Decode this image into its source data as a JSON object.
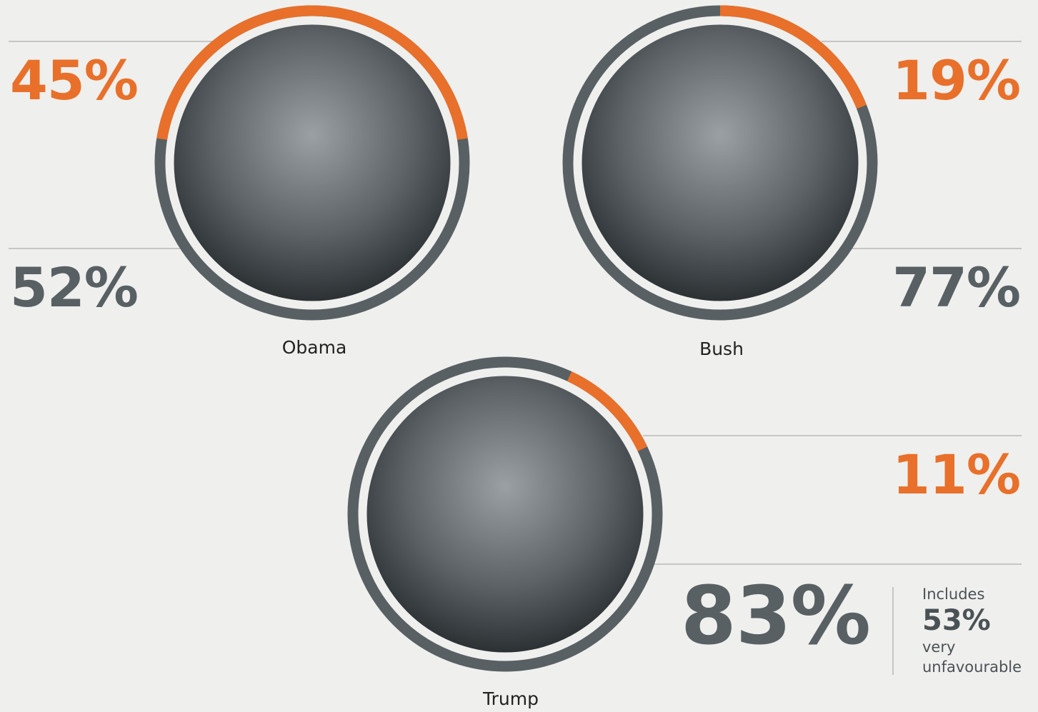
{
  "chart_data": {
    "type": "ring",
    "categories": [
      "Obama",
      "Bush",
      "Trump"
    ],
    "series": [
      {
        "color": "#e8702a",
        "values": [
          45,
          19,
          11
        ],
        "value_labels": [
          "45%",
          "19%",
          "11%"
        ]
      },
      {
        "color": "#586064",
        "values": [
          52,
          77,
          83
        ],
        "value_labels": [
          "52%",
          "77%",
          "83%"
        ]
      }
    ],
    "annotation": {
      "text_before": "Includes",
      "value": 53,
      "value_label": "53%",
      "text_after": "very unfavourable"
    }
  }
}
